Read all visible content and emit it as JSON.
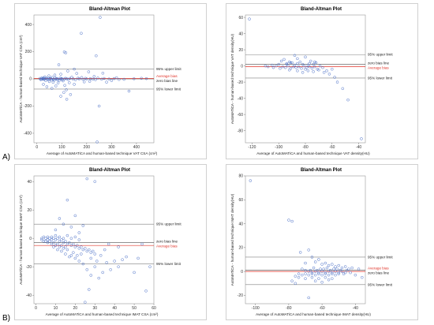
{
  "panel_labels": [
    "A)",
    "B)"
  ],
  "colors": {
    "points": "#4a6fc7",
    "bias": "#e0342a",
    "limits": "#808080",
    "zero": "#202020"
  },
  "chart_data": [
    {
      "type": "scatter",
      "title": "Bland-Altman Plot",
      "xlabel": "Average of AutoMATiCA and human-based technique VAT CSA (cm²)",
      "ylabel": "AutoMATiCA - human-based technique VAT CSA (cm²)",
      "xticks": [
        0,
        100,
        200,
        300,
        400
      ],
      "yticks": [
        -400,
        -200,
        0,
        200,
        400
      ],
      "xlim": [
        -12,
        470
      ],
      "ylim": [
        -470,
        470
      ],
      "lines": {
        "upper": 72,
        "zero": 0,
        "bias": 3,
        "lower": -75
      },
      "line_labels": {
        "upper": "95% upper limit",
        "bias": "Average bias",
        "zero": "zero bias line",
        "lower": "95% lower limit"
      },
      "label_order": [
        "upper",
        "bias",
        "zero",
        "lower"
      ],
      "points": [
        [
          254,
          452
        ],
        [
          178,
          335
        ],
        [
          110,
          198
        ],
        [
          116,
          192
        ],
        [
          238,
          170
        ],
        [
          88,
          104
        ],
        [
          150,
          72
        ],
        [
          124,
          58
        ],
        [
          208,
          52
        ],
        [
          265,
          42
        ],
        [
          160,
          40
        ],
        [
          96,
          34
        ],
        [
          72,
          28
        ],
        [
          48,
          22
        ],
        [
          230,
          18
        ],
        [
          32,
          15
        ],
        [
          62,
          12
        ],
        [
          140,
          12
        ],
        [
          180,
          10
        ],
        [
          320,
          8
        ],
        [
          20,
          8
        ],
        [
          28,
          6
        ],
        [
          38,
          5
        ],
        [
          55,
          4
        ],
        [
          80,
          3
        ],
        [
          100,
          2
        ],
        [
          120,
          1
        ],
        [
          145,
          0
        ],
        [
          170,
          0
        ],
        [
          200,
          -1
        ],
        [
          225,
          -2
        ],
        [
          260,
          -2
        ],
        [
          290,
          -1
        ],
        [
          350,
          -3
        ],
        [
          420,
          4
        ],
        [
          440,
          2
        ],
        [
          30,
          -4
        ],
        [
          44,
          -6
        ],
        [
          58,
          -8
        ],
        [
          70,
          -10
        ],
        [
          90,
          -12
        ],
        [
          105,
          -15
        ],
        [
          15,
          -5
        ],
        [
          25,
          -2
        ],
        [
          35,
          -12
        ],
        [
          50,
          -20
        ],
        [
          65,
          -25
        ],
        [
          85,
          -30
        ],
        [
          130,
          -28
        ],
        [
          190,
          -22
        ],
        [
          60,
          -70
        ],
        [
          108,
          -100
        ],
        [
          120,
          -150
        ],
        [
          96,
          -128
        ],
        [
          250,
          -200
        ],
        [
          370,
          -90
        ],
        [
          242,
          -464
        ],
        [
          150,
          -40
        ],
        [
          212,
          -18
        ],
        [
          280,
          -24
        ],
        [
          300,
          -12
        ],
        [
          26,
          -40
        ],
        [
          40,
          -58
        ],
        [
          76,
          -52
        ],
        [
          112,
          -48
        ],
        [
          118,
          -80
        ],
        [
          135,
          -115
        ],
        [
          22,
          2
        ],
        [
          34,
          3
        ],
        [
          46,
          4
        ],
        [
          52,
          1
        ],
        [
          66,
          -3
        ],
        [
          74,
          5
        ],
        [
          82,
          -5
        ],
        [
          94,
          6
        ],
        [
          102,
          -6
        ],
        [
          115,
          4
        ],
        [
          126,
          -4
        ],
        [
          132,
          3
        ],
        [
          155,
          -6
        ],
        [
          165,
          5
        ],
        [
          185,
          -3
        ],
        [
          195,
          4
        ],
        [
          215,
          2
        ],
        [
          235,
          -5
        ],
        [
          245,
          6
        ],
        [
          270,
          3
        ],
        [
          310,
          2
        ],
        [
          330,
          -4
        ],
        [
          390,
          1
        ],
        [
          12,
          3
        ],
        [
          18,
          -3
        ],
        [
          24,
          1
        ],
        [
          42,
          -1
        ],
        [
          56,
          2
        ],
        [
          68,
          -2
        ],
        [
          78,
          1
        ],
        [
          88,
          -2
        ],
        [
          98,
          1
        ],
        [
          110,
          -1
        ]
      ]
    },
    {
      "type": "scatter",
      "title": "Bland-Altman Plot",
      "xlabel": "Average of AutoMATiCA and human-based technique VAT density(HU)",
      "ylabel": "AutoMATiCA - human-based technique VAT density(HU)",
      "xticks": [
        -120,
        -100,
        -80,
        -60,
        -40
      ],
      "yticks": [
        -80,
        -60,
        -40,
        -20,
        0,
        20,
        40,
        60
      ],
      "xlim": [
        -125,
        -35
      ],
      "ylim": [
        -95,
        63
      ],
      "lines": {
        "upper": 14,
        "zero": 2,
        "bias": -1,
        "lower": -15
      },
      "line_labels": {
        "upper": "95% upper limit",
        "zero": "zero bias line",
        "bias": "Average bias",
        "lower": "95% lower limit"
      },
      "label_order": [
        "upper",
        "zero",
        "bias",
        "lower"
      ],
      "points": [
        [
          -122,
          58
        ],
        [
          -88,
          13
        ],
        [
          -86,
          9
        ],
        [
          -80,
          11
        ],
        [
          -96,
          8
        ],
        [
          -98,
          6
        ],
        [
          -92,
          5
        ],
        [
          -84,
          5
        ],
        [
          -90,
          4
        ],
        [
          -76,
          6
        ],
        [
          -72,
          4
        ],
        [
          -100,
          2
        ],
        [
          -94,
          2
        ],
        [
          -88,
          1
        ],
        [
          -82,
          2
        ],
        [
          -78,
          1
        ],
        [
          -74,
          2
        ],
        [
          -102,
          0
        ],
        [
          -97,
          -1
        ],
        [
          -93,
          0
        ],
        [
          -89,
          -1
        ],
        [
          -85,
          -1
        ],
        [
          -81,
          0
        ],
        [
          -77,
          -1
        ],
        [
          -73,
          -1
        ],
        [
          -69,
          0
        ],
        [
          -104,
          -2
        ],
        [
          -99,
          -3
        ],
        [
          -95,
          -2
        ],
        [
          -91,
          -3
        ],
        [
          -87,
          -2
        ],
        [
          -83,
          -3
        ],
        [
          -79,
          -2
        ],
        [
          -75,
          -3
        ],
        [
          -71,
          -4
        ],
        [
          -67,
          -2
        ],
        [
          -105,
          1
        ],
        [
          -91,
          4
        ],
        [
          -86,
          3
        ],
        [
          -80,
          -4
        ],
        [
          -78,
          -6
        ],
        [
          -74,
          -7
        ],
        [
          -70,
          -5
        ],
        [
          -66,
          -8
        ],
        [
          -64,
          -6
        ],
        [
          -62,
          -10
        ],
        [
          -58,
          -14
        ],
        [
          -60,
          -4
        ],
        [
          -56,
          -20
        ],
        [
          -52,
          -28
        ],
        [
          -48,
          -42
        ],
        [
          -38,
          -90
        ],
        [
          -110,
          0
        ],
        [
          -108,
          -1
        ],
        [
          -92,
          -5
        ],
        [
          -86,
          -6
        ],
        [
          -82,
          -8
        ],
        [
          -77,
          3
        ],
        [
          -73,
          5
        ],
        [
          -94,
          3
        ]
      ]
    },
    {
      "type": "scatter",
      "title": "Bland-Altman Plot",
      "xlabel": "Average of AutoMATiCA and human-based technique IMAT CSA (cm²)",
      "ylabel": "AutoMATiCA - human-based technique IMAT CSA (cm²)",
      "xticks": [
        0,
        10,
        20,
        30,
        40,
        50,
        60
      ],
      "yticks": [
        -40,
        -20,
        0,
        20,
        40
      ],
      "xlim": [
        -1,
        60
      ],
      "ylim": [
        -46,
        44
      ],
      "lines": {
        "upper": 10,
        "zero": -3,
        "bias": -5,
        "lower": -18
      },
      "line_labels": {
        "upper": "95% upper limit",
        "zero": "zero bias line",
        "bias": "Average bias",
        "lower": "95% lower limit"
      },
      "label_order": [
        "upper",
        "zero",
        "bias",
        "lower"
      ],
      "points": [
        [
          26,
          42
        ],
        [
          30,
          40
        ],
        [
          16,
          27
        ],
        [
          12,
          14
        ],
        [
          20,
          16
        ],
        [
          14,
          10
        ],
        [
          10,
          6
        ],
        [
          18,
          8
        ],
        [
          24,
          9
        ],
        [
          22,
          4
        ],
        [
          3,
          0
        ],
        [
          4,
          1
        ],
        [
          5,
          0
        ],
        [
          6,
          1
        ],
        [
          7,
          0
        ],
        [
          8,
          -1
        ],
        [
          9,
          0
        ],
        [
          10,
          -1
        ],
        [
          11,
          0
        ],
        [
          12,
          -2
        ],
        [
          13,
          -1
        ],
        [
          14,
          -3
        ],
        [
          15,
          -2
        ],
        [
          16,
          -4
        ],
        [
          17,
          -3
        ],
        [
          18,
          -5
        ],
        [
          19,
          -4
        ],
        [
          20,
          -6
        ],
        [
          21,
          -5
        ],
        [
          22,
          -7
        ],
        [
          23,
          -6
        ],
        [
          24,
          -8
        ],
        [
          25,
          -7
        ],
        [
          26,
          -9
        ],
        [
          27,
          -8
        ],
        [
          28,
          -10
        ],
        [
          29,
          -9
        ],
        [
          30,
          -11
        ],
        [
          5,
          -2
        ],
        [
          6,
          -3
        ],
        [
          7,
          -2
        ],
        [
          8,
          -4
        ],
        [
          9,
          -3
        ],
        [
          10,
          -5
        ],
        [
          11,
          -4
        ],
        [
          12,
          -6
        ],
        [
          13,
          -5
        ],
        [
          14,
          -7
        ],
        [
          15,
          -6
        ],
        [
          16,
          -8
        ],
        [
          18,
          -12
        ],
        [
          20,
          -14
        ],
        [
          22,
          -16
        ],
        [
          24,
          -18
        ],
        [
          26,
          -22
        ],
        [
          28,
          -26
        ],
        [
          30,
          -20
        ],
        [
          32,
          -28
        ],
        [
          34,
          -24
        ],
        [
          36,
          -17
        ],
        [
          38,
          -22
        ],
        [
          42,
          -20
        ],
        [
          44,
          -15
        ],
        [
          46,
          -13
        ],
        [
          50,
          -24
        ],
        [
          52,
          -14
        ],
        [
          56,
          -37
        ],
        [
          40,
          -16
        ],
        [
          25,
          -45
        ],
        [
          27,
          -36
        ],
        [
          33,
          -12
        ],
        [
          35,
          -8
        ],
        [
          37,
          -4
        ],
        [
          3,
          -1
        ],
        [
          4,
          -2
        ],
        [
          6,
          -1
        ],
        [
          8,
          1
        ],
        [
          10,
          2
        ],
        [
          12,
          1
        ],
        [
          14,
          0
        ],
        [
          16,
          2
        ],
        [
          18,
          0
        ],
        [
          20,
          1
        ],
        [
          22,
          -1
        ],
        [
          9,
          -6
        ],
        [
          11,
          -8
        ],
        [
          13,
          -9
        ],
        [
          15,
          -11
        ],
        [
          17,
          -13
        ],
        [
          19,
          -10
        ],
        [
          21,
          -12
        ],
        [
          23,
          -11
        ],
        [
          28,
          -14
        ],
        [
          31,
          -16
        ],
        [
          42,
          -6
        ],
        [
          54,
          -4
        ],
        [
          58,
          -20
        ]
      ]
    },
    {
      "type": "scatter",
      "title": "Bland-Altman Plot",
      "xlabel": "Average of AutoMATiCA and human-based technique IMAT density(HU)",
      "ylabel": "AutoMATiCA - human-based technique IMAT density(HU)",
      "xticks": [
        -100,
        -80,
        -60,
        -40
      ],
      "yticks": [
        -20,
        0,
        20,
        40,
        60,
        80
      ],
      "xlim": [
        -106,
        -34
      ],
      "ylim": [
        -27,
        80
      ],
      "lines": {
        "upper": 12,
        "zero": 1,
        "bias": 0,
        "lower": -11
      },
      "line_labels": {
        "upper": "95% upper limit",
        "bias": "Average bias",
        "zero": "zero bias line",
        "lower": "95% lower limit"
      },
      "label_order": [
        "upper",
        "bias",
        "zero",
        "lower"
      ],
      "points": [
        [
          -103,
          76
        ],
        [
          -80,
          43
        ],
        [
          -78,
          42
        ],
        [
          -73,
          16
        ],
        [
          -68,
          18
        ],
        [
          -66,
          12
        ],
        [
          -70,
          7
        ],
        [
          -64,
          8
        ],
        [
          -62,
          10
        ],
        [
          -60,
          6
        ],
        [
          -58,
          7
        ],
        [
          -56,
          5
        ],
        [
          -54,
          6
        ],
        [
          -52,
          4
        ],
        [
          -50,
          5
        ],
        [
          -48,
          3
        ],
        [
          -46,
          4
        ],
        [
          -44,
          2
        ],
        [
          -42,
          3
        ],
        [
          -38,
          2
        ],
        [
          -72,
          2
        ],
        [
          -70,
          1
        ],
        [
          -68,
          0
        ],
        [
          -66,
          -1
        ],
        [
          -64,
          0
        ],
        [
          -62,
          -1
        ],
        [
          -60,
          0
        ],
        [
          -58,
          -1
        ],
        [
          -56,
          0
        ],
        [
          -54,
          -1
        ],
        [
          -52,
          0
        ],
        [
          -50,
          -1
        ],
        [
          -48,
          0
        ],
        [
          -46,
          -1
        ],
        [
          -74,
          -2
        ],
        [
          -72,
          -3
        ],
        [
          -70,
          -2
        ],
        [
          -68,
          -3
        ],
        [
          -66,
          -2
        ],
        [
          -64,
          -3
        ],
        [
          -62,
          -2
        ],
        [
          -60,
          -3
        ],
        [
          -58,
          -2
        ],
        [
          -56,
          -3
        ],
        [
          -54,
          -2
        ],
        [
          -52,
          -3
        ],
        [
          -50,
          -2
        ],
        [
          -76,
          -4
        ],
        [
          -74,
          -5
        ],
        [
          -70,
          -6
        ],
        [
          -66,
          -5
        ],
        [
          -62,
          -6
        ],
        [
          -58,
          -5
        ],
        [
          -54,
          -6
        ],
        [
          -68,
          -22
        ],
        [
          -78,
          -8
        ],
        [
          -76,
          -10
        ],
        [
          -64,
          -8
        ],
        [
          -60,
          -9
        ],
        [
          -56,
          -7
        ],
        [
          -65,
          3
        ],
        [
          -61,
          2
        ],
        [
          -57,
          3
        ],
        [
          -53,
          2
        ],
        [
          -49,
          1
        ],
        [
          -45,
          1
        ],
        [
          -67,
          1
        ],
        [
          -63,
          1
        ],
        [
          -59,
          2
        ],
        [
          -55,
          1
        ],
        [
          -51,
          2
        ],
        [
          -47,
          -2
        ],
        [
          -43,
          -1
        ],
        [
          -40,
          -3
        ],
        [
          -36,
          -5
        ]
      ]
    }
  ]
}
